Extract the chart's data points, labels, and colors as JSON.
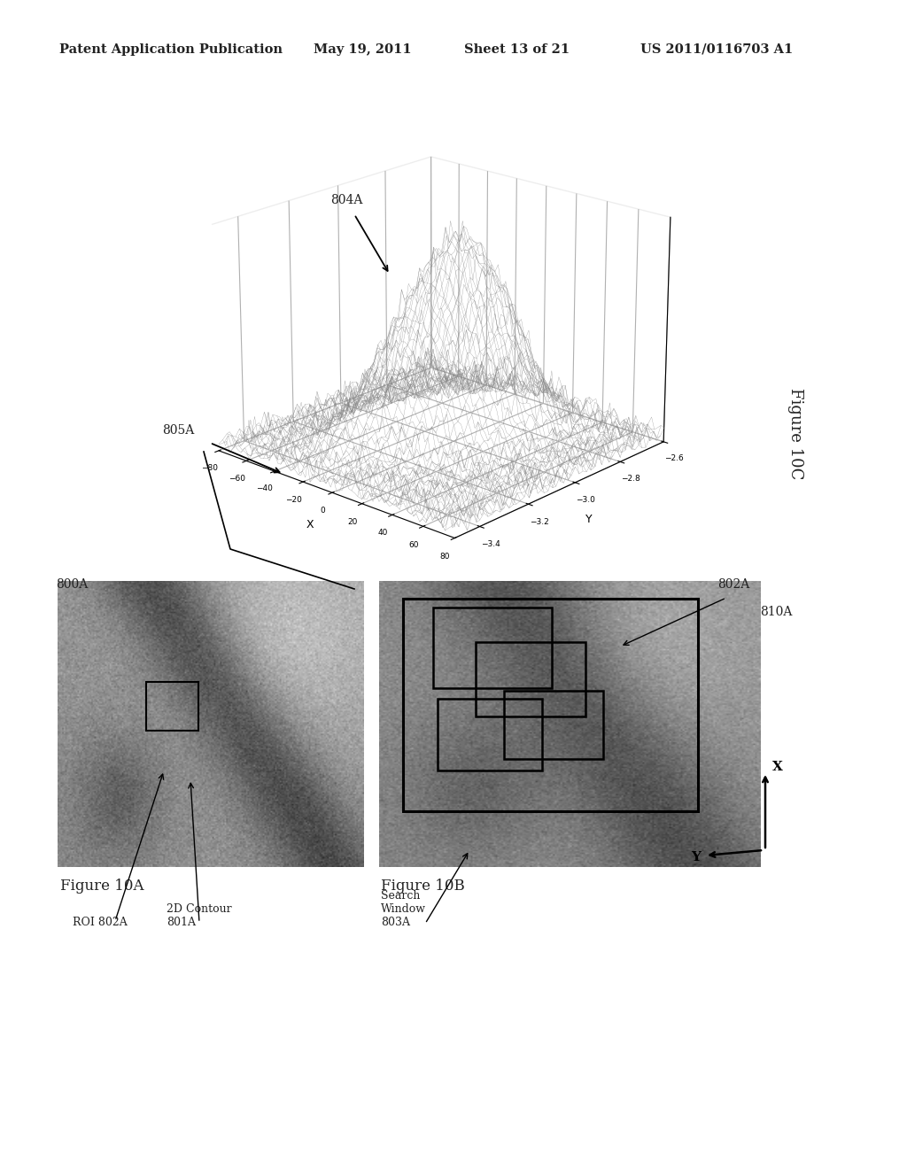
{
  "background_color": "#ffffff",
  "header_text": "Patent Application Publication",
  "header_date": "May 19, 2011",
  "header_sheet": "Sheet 13 of 21",
  "header_patent": "US 2011/0116703 A1",
  "fig10c_label": "Figure 10C",
  "fig10a_label": "Figure 10A",
  "fig10b_label": "Figure 10B",
  "label_800A": "800A",
  "label_802A": "802A",
  "label_804A": "804A",
  "label_805A": "805A",
  "label_810A": "810A",
  "label_roi": "ROI 802A",
  "label_2d": "2D Contour\n801A",
  "label_search": "Search\nWindow\n803A",
  "text_color": "#222222",
  "line_color": "#000000"
}
